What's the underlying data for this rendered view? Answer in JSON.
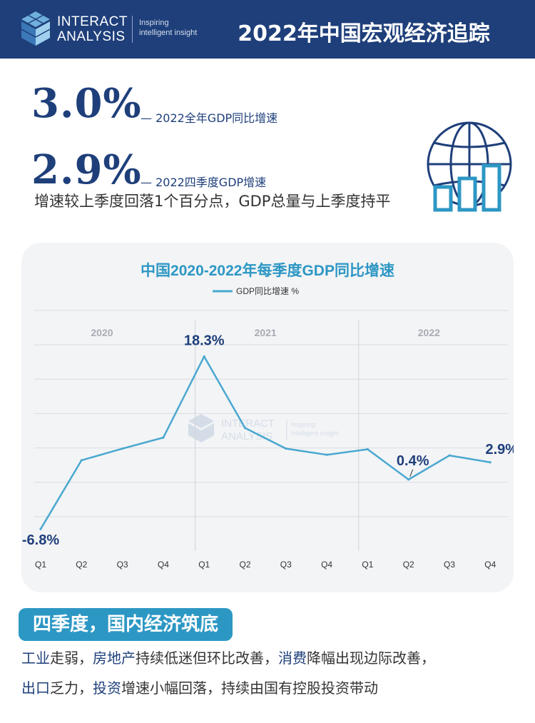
{
  "header": {
    "logo_line1": "INTERACT",
    "logo_line2": "ANALYSIS",
    "tagline_line1": "Inspiring",
    "tagline_line2": "intelligent insight",
    "title": "2022年中国宏观经济追踪"
  },
  "highlights": [
    {
      "value": "3.0%",
      "desc": "— 2022全年GDP同比增速"
    },
    {
      "value": "2.9%",
      "desc": "— 2022四季度GDP增速"
    }
  ],
  "sub_desc": "增速较上季度回落1个百分点，GDP总量与上季度持平",
  "chart_data": {
    "type": "line",
    "title": "中国2020-2022年每季度GDP同比增速",
    "legend": "GDP同比增速 %",
    "years": [
      "2020",
      "2021",
      "2022"
    ],
    "categories": [
      "Q1",
      "Q2",
      "Q3",
      "Q4",
      "Q1",
      "Q2",
      "Q3",
      "Q4",
      "Q1",
      "Q2",
      "Q3",
      "Q4"
    ],
    "series": [
      {
        "name": "GDP同比增速 %",
        "values": [
          -6.8,
          3.2,
          4.9,
          6.5,
          18.3,
          7.9,
          4.9,
          4.0,
          4.8,
          0.4,
          3.9,
          2.9
        ]
      }
    ],
    "data_labels": {
      "0": "-6.8%",
      "4": "18.3%",
      "9": "0.4%",
      "11": "2.9%"
    },
    "ylim": [
      -10,
      25
    ],
    "grid": true,
    "legend_position": "top",
    "color": "#4aa8d0",
    "watermark": {
      "line1": "INTERACT",
      "line2": "ANALYSIS",
      "tag1": "Inspiring",
      "tag2": "intelligent insight"
    }
  },
  "section": {
    "badge": "四季度，国内经济筑底",
    "line1": [
      {
        "text": "工业",
        "hl": true
      },
      {
        "text": "走弱，",
        "hl": false
      },
      {
        "text": "房地产",
        "hl": true
      },
      {
        "text": "持续低迷但环比改善，",
        "hl": false
      },
      {
        "text": "消费",
        "hl": true
      },
      {
        "text": "降幅出现边际改善，",
        "hl": false
      }
    ],
    "line2": [
      {
        "text": "出口",
        "hl": true
      },
      {
        "text": "乏力，",
        "hl": false
      },
      {
        "text": "投资",
        "hl": true
      },
      {
        "text": "增速小幅回落，持续由国有控股投资带动",
        "hl": false
      }
    ]
  }
}
